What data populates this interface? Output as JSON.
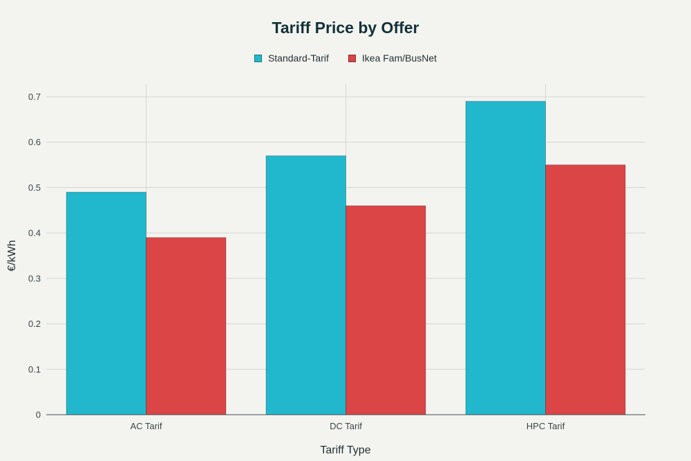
{
  "chart_data": {
    "type": "bar",
    "title": "Tariff Price by Offer",
    "xlabel": "Tariff Type",
    "ylabel": "€/kWh",
    "categories": [
      "AC Tarif",
      "DC Tarif",
      "HPC Tarif"
    ],
    "series": [
      {
        "name": "Standard-Tarif",
        "color": "#21b8cd",
        "values": [
          0.49,
          0.57,
          0.69
        ]
      },
      {
        "name": "Ikea Fam/BusNet",
        "color": "#db4546",
        "values": [
          0.39,
          0.46,
          0.55
        ]
      }
    ],
    "ylim": [
      0,
      0.7
    ],
    "yticks": [
      "0",
      "0.1",
      "0.2",
      "0.3",
      "0.4",
      "0.5",
      "0.6",
      "0.7"
    ],
    "ytick_values": [
      0,
      0.1,
      0.2,
      0.3,
      0.4,
      0.5,
      0.6,
      0.7
    ],
    "grid": true,
    "legend_position": "top-center"
  }
}
